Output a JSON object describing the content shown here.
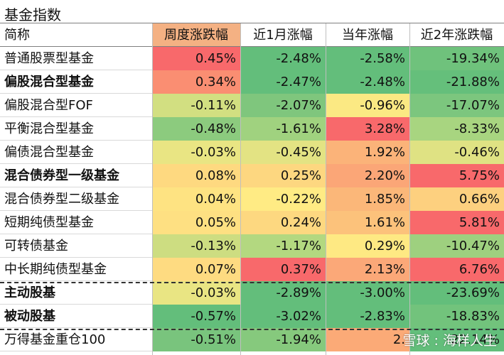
{
  "title": "基金指数",
  "headers": [
    "简称",
    "周度涨跌幅",
    "近1月涨幅",
    "当年涨幅",
    "近2年涨跌幅"
  ],
  "rows": [
    {
      "name": "普通股票型基金",
      "bold": false,
      "values": [
        "0.45%",
        "-2.48%",
        "-2.58%",
        "-19.34%"
      ],
      "colors": [
        "#f8696b",
        "#63be7b",
        "#63be7b",
        "#6fc27c"
      ]
    },
    {
      "name": "偏股混合型基金",
      "bold": true,
      "values": [
        "0.34%",
        "-2.47%",
        "-2.48%",
        "-21.88%"
      ],
      "colors": [
        "#fa8e72",
        "#63be7b",
        "#63be7b",
        "#65bf7b"
      ]
    },
    {
      "name": "偏股混合型FOF",
      "bold": false,
      "values": [
        "-0.11%",
        "-2.07%",
        "-0.96%",
        "-17.07%"
      ],
      "colors": [
        "#d2df81",
        "#7fc67d",
        "#fbe983",
        "#7cc67e"
      ]
    },
    {
      "name": "平衡混合型基金",
      "bold": false,
      "values": [
        "-0.48%",
        "-1.61%",
        "3.28%",
        "-8.33%"
      ],
      "colors": [
        "#8ccb7e",
        "#a0d27f",
        "#f8696b",
        "#a8d580"
      ]
    },
    {
      "name": "偏债混合型基金",
      "bold": false,
      "values": [
        "-0.03%",
        "-0.45%",
        "1.92%",
        "-0.46%"
      ],
      "colors": [
        "#e9e583",
        "#e3e383",
        "#fbb379",
        "#dfe283"
      ]
    },
    {
      "name": "混合债券型一级基金",
      "bold": true,
      "values": [
        "0.08%",
        "0.25%",
        "2.20%",
        "5.75%"
      ],
      "colors": [
        "#fed980",
        "#fdd780",
        "#fba677",
        "#f8696b"
      ]
    },
    {
      "name": "混合债券型二级基金",
      "bold": false,
      "values": [
        "0.04%",
        "-0.22%",
        "1.85%",
        "0.66%"
      ],
      "colors": [
        "#fee382",
        "#ffeb84",
        "#fbb779",
        "#fdd07f"
      ]
    },
    {
      "name": "短期纯债型基金",
      "bold": false,
      "values": [
        "0.05%",
        "0.24%",
        "1.61%",
        "5.81%"
      ],
      "colors": [
        "#fee082",
        "#fdd880",
        "#fcc27b",
        "#f8696b"
      ]
    },
    {
      "name": "可转债基金",
      "bold": false,
      "values": [
        "-0.13%",
        "-1.17%",
        "0.29%",
        "-10.47%"
      ],
      "colors": [
        "#cddd81",
        "#b3d880",
        "#fee983",
        "#9ed07f"
      ]
    },
    {
      "name": "中长期纯债型基金",
      "bold": false,
      "values": [
        "0.07%",
        "0.37%",
        "2.13%",
        "6.76%"
      ],
      "colors": [
        "#fedb81",
        "#f8696b",
        "#fba878",
        "#f8696b"
      ]
    },
    {
      "name": "主动股基",
      "bold": true,
      "values": [
        "-0.03%",
        "-2.89%",
        "-3.00%",
        "-23.69%"
      ],
      "colors": [
        "#e9e583",
        "#63be7b",
        "#63be7b",
        "#63be7b"
      ]
    },
    {
      "name": "被动股基",
      "bold": true,
      "values": [
        "-0.57%",
        "-3.02%",
        "-2.83%",
        "-18.83%"
      ],
      "colors": [
        "#63be7b",
        "#63be7b",
        "#63be7b",
        "#72c37c"
      ]
    },
    {
      "name": "万得基金重仓100",
      "bold": false,
      "values": [
        "-0.51%",
        "-1.94%",
        "2.",
        "-22.14%"
      ],
      "colors": [
        "#79c47d",
        "#86c97d",
        "#fbaa77",
        "#63be7b"
      ]
    }
  ],
  "watermark": "雪球 : 海样人生"
}
